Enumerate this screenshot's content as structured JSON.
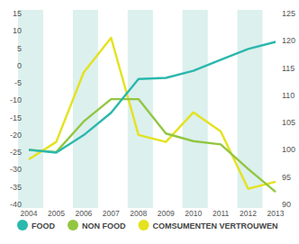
{
  "chart_data": {
    "type": "line",
    "x": [
      2004,
      2005,
      2006,
      2007,
      2008,
      2009,
      2010,
      2011,
      2012,
      2013
    ],
    "xlim": [
      2004,
      2013
    ],
    "xticks": [
      2004,
      2005,
      2006,
      2007,
      2008,
      2009,
      2010,
      2011,
      2012,
      2013
    ],
    "ylim": [
      -40,
      15
    ],
    "yticks": [
      -40,
      -35,
      -30,
      -25,
      -20,
      -15,
      -10,
      -5,
      0,
      5,
      10,
      15
    ],
    "y2lim": [
      90,
      125
    ],
    "y2ticks": [
      90,
      95,
      100,
      105,
      110,
      115,
      120,
      125
    ],
    "grid": false,
    "legend": "bottom",
    "series": [
      {
        "name": "FOOD",
        "color": "#2bb8ad",
        "axis": "y2",
        "values": [
          100,
          99.5,
          102.7,
          106.8,
          113,
          113.2,
          114.5,
          116.5,
          118.5,
          119.8
        ]
      },
      {
        "name": "NON FOOD",
        "color": "#92c641",
        "axis": "y2",
        "values": [
          100,
          99.6,
          105.2,
          109.3,
          109.3,
          103,
          101.6,
          101,
          96.5,
          92.3
        ]
      },
      {
        "name": "COMSUMENTEN VERTROUWEN",
        "color": "#e4e21e",
        "values": [
          -27,
          -22,
          -2,
          8,
          -20,
          -22,
          -13.5,
          -19,
          -35.5,
          -33.5
        ]
      }
    ]
  }
}
